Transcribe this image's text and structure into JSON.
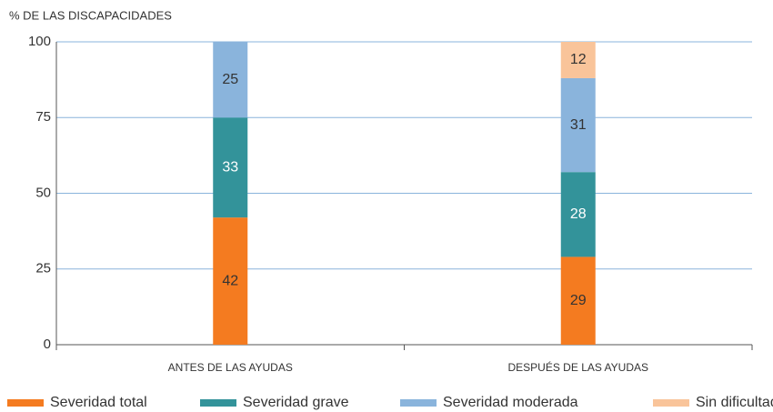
{
  "chart_data": {
    "type": "stacked_bar",
    "y_label": "% DE LAS DISCAPACIDADES",
    "categories": [
      "ANTES DE LAS AYUDAS",
      "DESPUÉS DE LAS AYUDAS"
    ],
    "series": [
      {
        "name": "Severidad total",
        "color": "#f47b20",
        "label_color": "#333333",
        "values": [
          42,
          29
        ]
      },
      {
        "name": "Severidad grave",
        "color": "#33939a",
        "label_color": "#ffffff",
        "values": [
          33,
          28
        ]
      },
      {
        "name": "Severidad moderada",
        "color": "#8ab4dc",
        "label_color": "#333333",
        "values": [
          25,
          31
        ]
      },
      {
        "name": "Sin dificultad",
        "color": "#f9c49a",
        "label_color": "#333333",
        "values": [
          null,
          12
        ]
      }
    ],
    "ylim": [
      0,
      100
    ],
    "yticks": [
      0,
      25,
      50,
      75,
      100
    ],
    "grid": true,
    "grid_color": "#8ab4dc",
    "legend": "bottom"
  }
}
